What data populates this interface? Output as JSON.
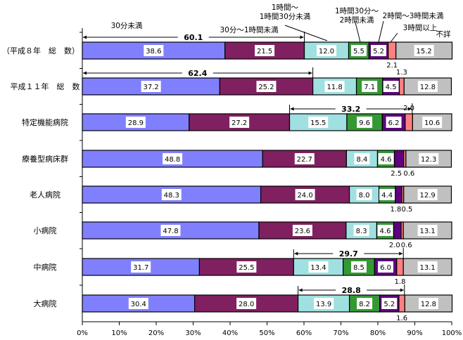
{
  "chart_data": {
    "type": "bar",
    "orientation": "horizontal",
    "stacked": true,
    "categories": [
      "（平成８年　総　数）",
      "平成１１年　総　数",
      "特定機能病院",
      "療養型病床群",
      "老人病院",
      "小病院",
      "中病院",
      "大病院"
    ],
    "series": [
      {
        "name": "30分未満",
        "color": "#8080FF",
        "values": [
          38.6,
          37.2,
          28.9,
          48.8,
          48.3,
          47.8,
          31.7,
          30.4
        ]
      },
      {
        "name": "30分～1時間未満",
        "color": "#802060",
        "values": [
          21.5,
          25.2,
          27.2,
          22.7,
          24.0,
          23.6,
          25.5,
          28.0
        ]
      },
      {
        "name": "1時間～\n1時間30分未満",
        "color": "#A0E0E0",
        "values": [
          12.0,
          11.8,
          15.5,
          8.4,
          8.0,
          8.3,
          13.4,
          13.9
        ]
      },
      {
        "name": "1時間30分～\n2時間未満",
        "color": "#339933",
        "values": [
          5.5,
          7.1,
          9.6,
          4.6,
          4.4,
          4.6,
          8.5,
          8.2
        ]
      },
      {
        "name": "2時間～3時間未満",
        "color": "#600080",
        "values": [
          5.2,
          4.5,
          6.2,
          2.5,
          1.8,
          2.0,
          6.0,
          5.2
        ]
      },
      {
        "name": "3時間以上",
        "color": "#FF8080",
        "values": [
          2.1,
          1.3,
          2.0,
          0.6,
          0.5,
          0.6,
          1.8,
          1.6
        ]
      },
      {
        "name": "不詳",
        "color": "#C0C0C0",
        "values": [
          15.2,
          12.8,
          10.6,
          12.3,
          12.9,
          13.1,
          13.1,
          12.8
        ]
      }
    ],
    "brackets": [
      {
        "row": 0,
        "from": 0,
        "to": 60.1,
        "label": "60.1"
      },
      {
        "row": 1,
        "from": 0,
        "to": 62.4,
        "label": "62.4"
      },
      {
        "row": 2,
        "from": 56.1,
        "to": 89.3,
        "label": "33.2"
      },
      {
        "row": 6,
        "from": 57.2,
        "to": 86.9,
        "label": "29.7"
      },
      {
        "row": 7,
        "from": 58.4,
        "to": 87.2,
        "label": "28.8"
      }
    ],
    "xlim": [
      0,
      100
    ],
    "xticks": [
      "0%",
      "10%",
      "20%",
      "30%",
      "40%",
      "50%",
      "60%",
      "70%",
      "80%",
      "90%",
      "100%"
    ],
    "legend": "inline-top"
  }
}
